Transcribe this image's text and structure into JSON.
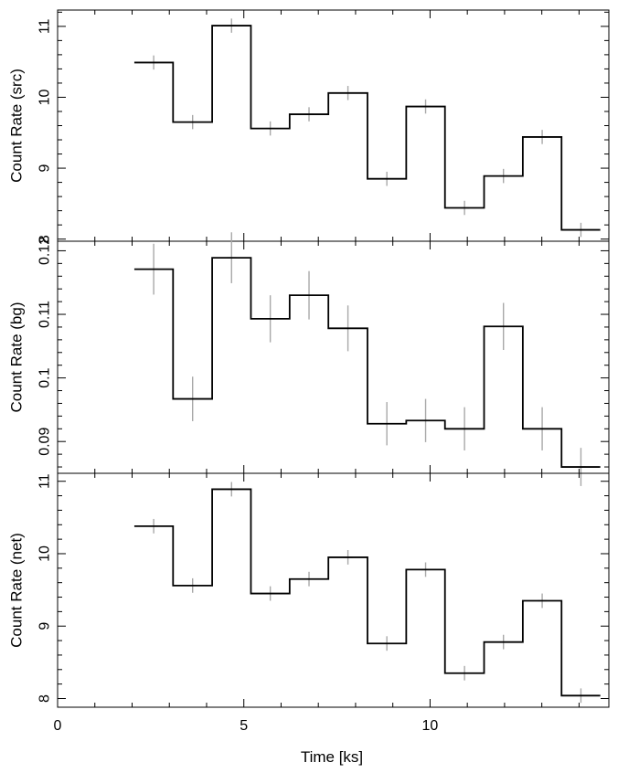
{
  "chart_data": [
    {
      "type": "line",
      "style": "step",
      "ylabel": "Count Rate (src)",
      "xlim": [
        0,
        14.8
      ],
      "ylim": [
        7.97,
        11.23
      ],
      "yticks": [
        8,
        9,
        10,
        11
      ],
      "ytick_labels": [
        "8",
        "9",
        "10",
        "11"
      ],
      "bin_edges": [
        2.06,
        3.1,
        4.15,
        5.19,
        6.23,
        7.27,
        8.32,
        9.36,
        10.4,
        11.45,
        12.49,
        13.53,
        14.57
      ],
      "values": [
        10.49,
        9.65,
        11.01,
        9.56,
        9.76,
        10.06,
        8.85,
        9.87,
        8.44,
        8.89,
        9.44,
        8.13
      ],
      "errors": [
        0.1,
        0.1,
        0.1,
        0.1,
        0.1,
        0.1,
        0.1,
        0.1,
        0.1,
        0.1,
        0.1,
        0.1
      ]
    },
    {
      "type": "line",
      "style": "step",
      "ylabel": "Count Rate (bg)",
      "xlim": [
        0,
        14.8
      ],
      "ylim": [
        0.085,
        0.1215
      ],
      "yticks": [
        0.09,
        0.1,
        0.11,
        0.12
      ],
      "ytick_labels": [
        "0.09",
        "0.1",
        "0.11",
        "0.12"
      ],
      "bin_edges": [
        2.06,
        3.1,
        4.15,
        5.19,
        6.23,
        7.27,
        8.32,
        9.36,
        10.4,
        11.45,
        12.49,
        13.53,
        14.57
      ],
      "values": [
        0.1171,
        0.0967,
        0.1189,
        0.1093,
        0.113,
        0.1078,
        0.0928,
        0.0933,
        0.092,
        0.1081,
        0.092,
        0.086
      ],
      "errors": [
        0.004,
        0.0035,
        0.004,
        0.0037,
        0.0038,
        0.0036,
        0.0034,
        0.0034,
        0.0034,
        0.0037,
        0.0034,
        0.003
      ]
    },
    {
      "type": "line",
      "style": "step",
      "ylabel": "Count Rate (net)",
      "xlabel": "Time [ks]",
      "xlim": [
        0,
        14.8
      ],
      "ylim": [
        7.88,
        11.11
      ],
      "xticks": [
        0,
        5,
        10
      ],
      "xtick_labels": [
        "0",
        "5",
        "10"
      ],
      "yticks": [
        8,
        9,
        10,
        11
      ],
      "ytick_labels": [
        "8",
        "9",
        "10",
        "11"
      ],
      "bin_edges": [
        2.06,
        3.1,
        4.15,
        5.19,
        6.23,
        7.27,
        8.32,
        9.36,
        10.4,
        11.45,
        12.49,
        13.53,
        14.57
      ],
      "values": [
        10.38,
        9.56,
        10.89,
        9.45,
        9.65,
        9.95,
        8.76,
        9.78,
        8.35,
        8.78,
        9.35,
        8.04
      ],
      "errors": [
        0.1,
        0.1,
        0.1,
        0.1,
        0.1,
        0.1,
        0.1,
        0.1,
        0.1,
        0.1,
        0.1,
        0.1
      ]
    }
  ],
  "colors": {
    "step_line": "#000000",
    "error_bars": "#a8a8a8",
    "axes": "#000000"
  }
}
